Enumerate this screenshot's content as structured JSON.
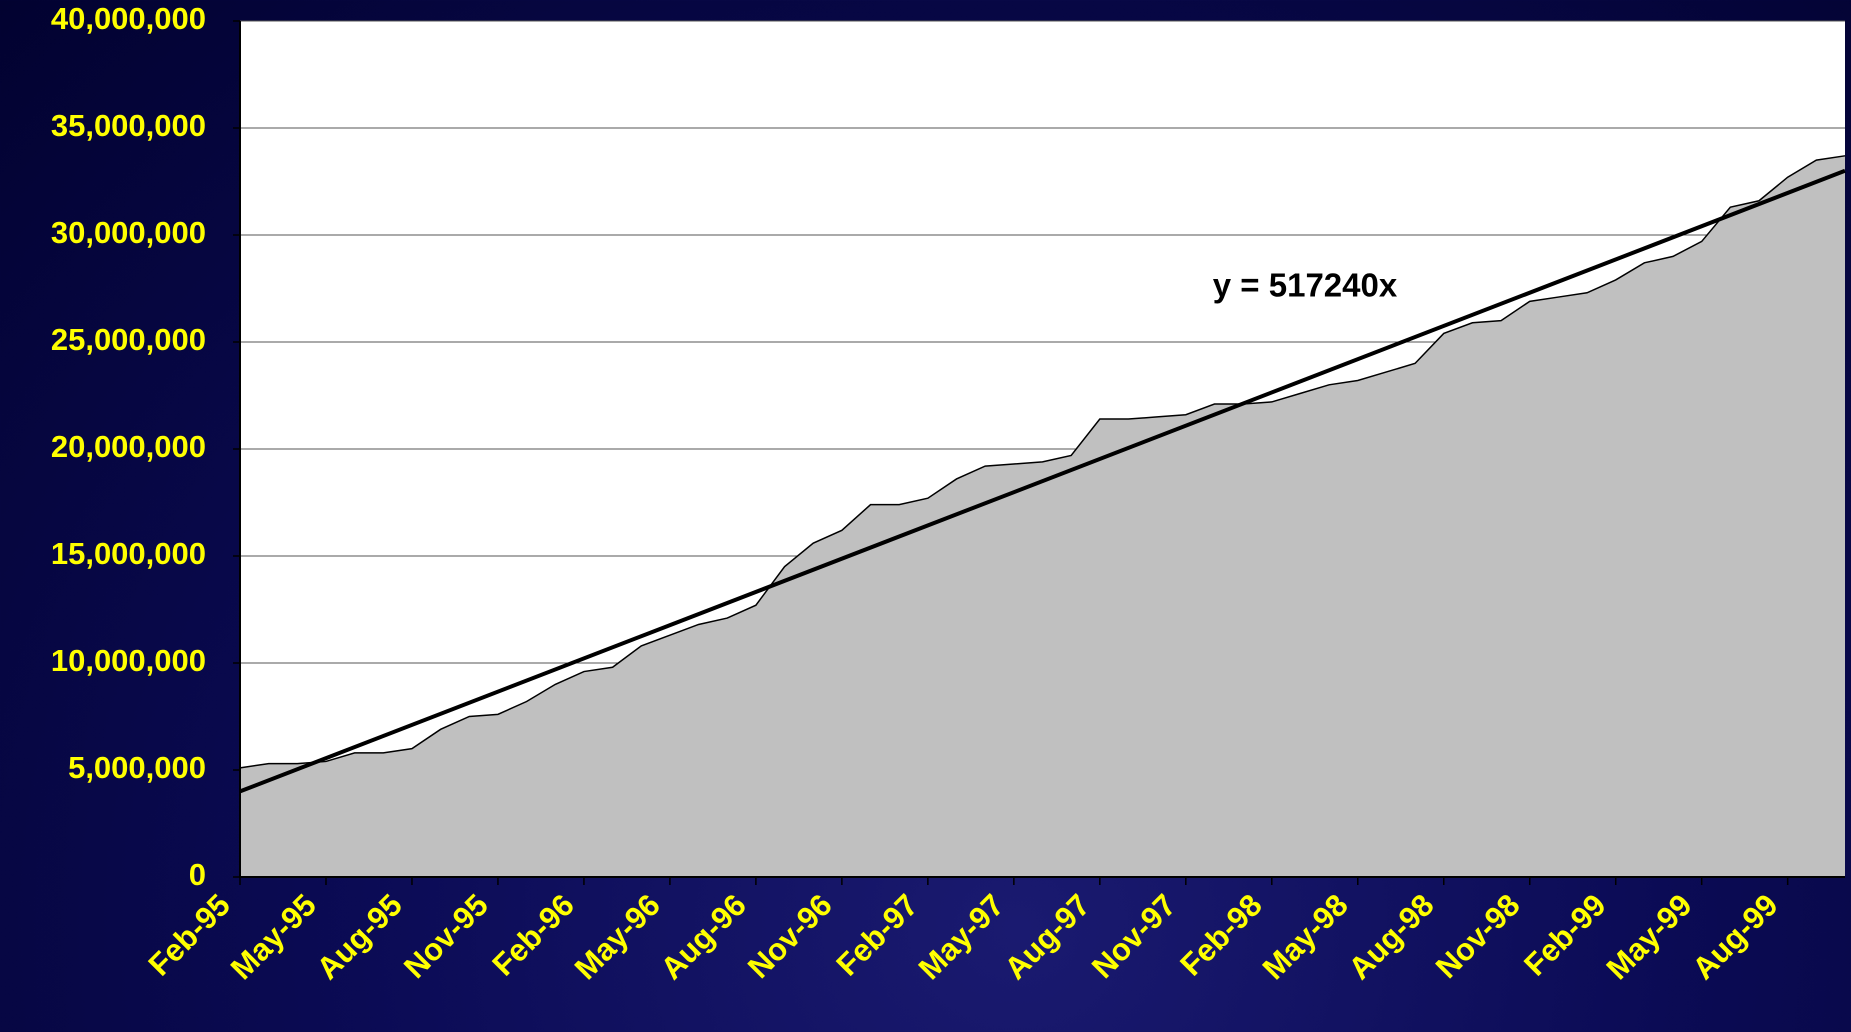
{
  "chart_data": {
    "type": "area",
    "categories": [
      "Feb-95",
      null,
      null,
      "May-95",
      null,
      null,
      "Aug-95",
      null,
      null,
      "Nov-95",
      null,
      null,
      "Feb-96",
      null,
      null,
      "May-96",
      null,
      null,
      "Aug-96",
      null,
      null,
      "Nov-96",
      null,
      null,
      "Feb-97",
      null,
      null,
      "May-97",
      null,
      null,
      "Aug-97",
      null,
      null,
      "Nov-97",
      null,
      null,
      "Feb-98",
      null,
      null,
      "May-98",
      null,
      null,
      "Aug-98",
      null,
      null,
      "Nov-98",
      null,
      null,
      "Feb-99",
      null,
      null,
      "May-99",
      null,
      null,
      "Aug-99",
      null,
      null
    ],
    "values": [
      5100000,
      5300000,
      5300000,
      5400000,
      5800000,
      5800000,
      6000000,
      6900000,
      7500000,
      7600000,
      8200000,
      9000000,
      9600000,
      9800000,
      10800000,
      11300000,
      11800000,
      12100000,
      12700000,
      14500000,
      15600000,
      16200000,
      17400000,
      17400000,
      17700000,
      18600000,
      19200000,
      19300000,
      19400000,
      19700000,
      21400000,
      21400000,
      21500000,
      21600000,
      22100000,
      22100000,
      22200000,
      22600000,
      23000000,
      23200000,
      23600000,
      24000000,
      25400000,
      25900000,
      26000000,
      26900000,
      27100000,
      27300000,
      27900000,
      28700000,
      29000000,
      29700000,
      31300000,
      31600000,
      32700000,
      33500000,
      33700000
    ],
    "color": "#c0c0c0",
    "trendline": {
      "label": "y = 517240x",
      "start": 4000000,
      "end": 33000000
    },
    "ylim": [
      0,
      40000000
    ],
    "yticks": [
      0,
      {
        "value": 5000000,
        "label": "5,000,000"
      },
      {
        "value": 10000000,
        "label": "10,000,000"
      },
      {
        "value": 15000000,
        "label": "15,000,000"
      },
      {
        "value": 20000000,
        "label": "20,000,000"
      },
      {
        "value": 25000000,
        "label": "25,000,000"
      },
      {
        "value": 30000000,
        "label": "30,000,000"
      },
      {
        "value": 35000000,
        "label": "35,000,000"
      },
      {
        "value": 40000000,
        "label": "40,000,000"
      }
    ],
    "grid": true
  }
}
